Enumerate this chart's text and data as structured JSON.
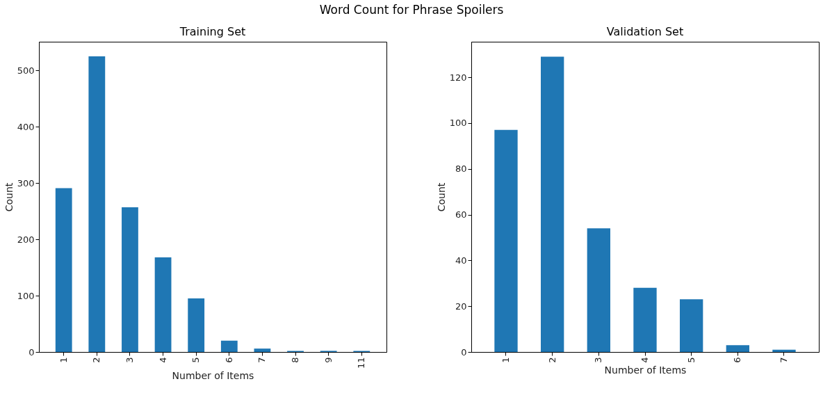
{
  "chart_data": [
    {
      "type": "bar",
      "title": "Training Set",
      "xlabel": "Number of Items",
      "ylabel": "Count",
      "categories": [
        "1",
        "2",
        "3",
        "4",
        "5",
        "6",
        "7",
        "8",
        "9",
        "11"
      ],
      "values": [
        291,
        525,
        257,
        168,
        95,
        20,
        6,
        2,
        2,
        2
      ],
      "color": "#1f77b4",
      "ylim": [
        0,
        551
      ],
      "yticks": [
        0,
        100,
        200,
        300,
        400,
        500
      ],
      "grid": false
    },
    {
      "type": "bar",
      "title": "Validation Set",
      "xlabel": "Number of Items",
      "ylabel": "Count",
      "categories": [
        "1",
        "2",
        "3",
        "4",
        "5",
        "6",
        "7"
      ],
      "values": [
        97,
        129,
        54,
        28,
        23,
        3,
        1
      ],
      "color": "#1f77b4",
      "ylim": [
        0,
        135.5
      ],
      "yticks": [
        0,
        20,
        40,
        60,
        80,
        100,
        120
      ],
      "grid": false,
      "annotations": [
        "Word Count for Phrase Spoilers"
      ]
    }
  ]
}
